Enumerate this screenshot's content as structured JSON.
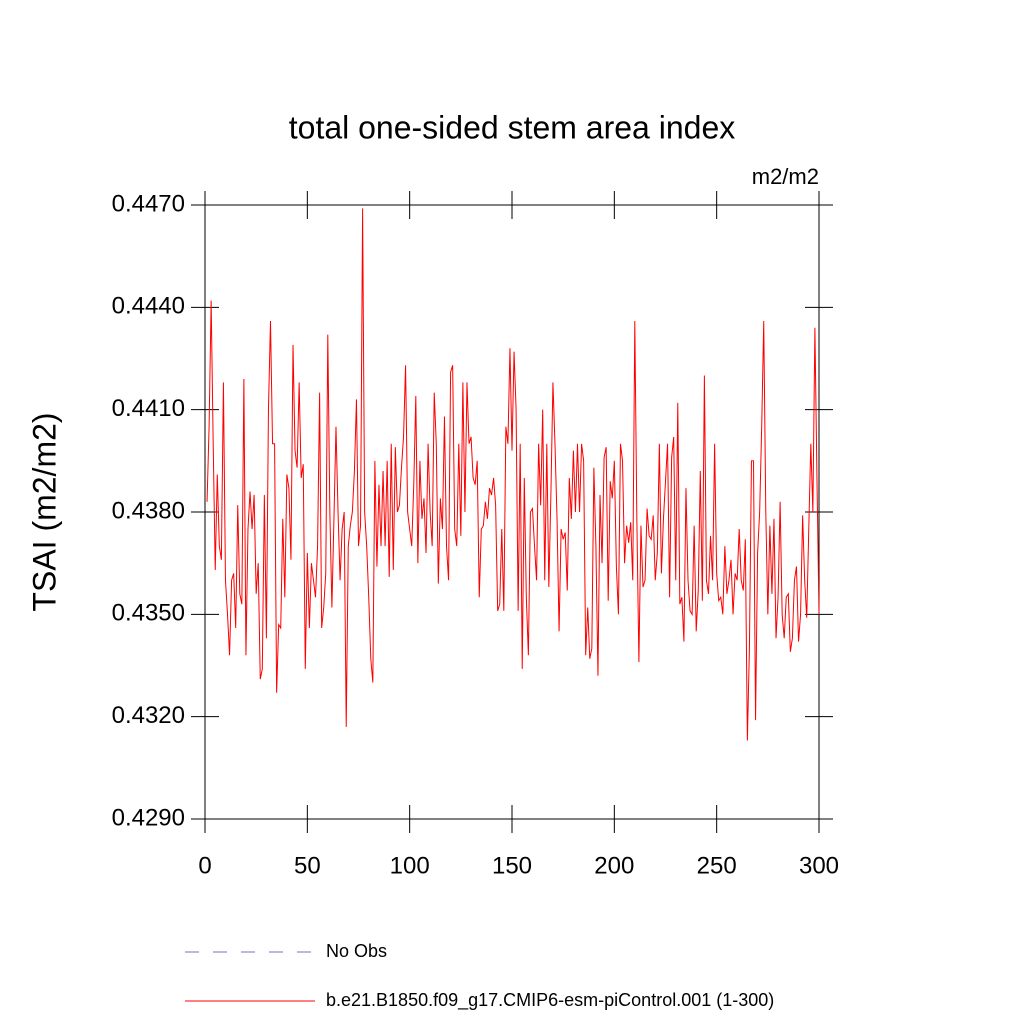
{
  "chart_data": {
    "type": "line",
    "title": "total one-sided stem area index",
    "units": "m2/m2",
    "ylabel": "TSAI  (m2/m2)",
    "xlim": [
      0,
      300
    ],
    "xticks": [
      0,
      50,
      100,
      150,
      200,
      250,
      300
    ],
    "ylim": [
      0.429,
      0.447
    ],
    "yticks": [
      {
        "value": 0.429,
        "label": "0.4290"
      },
      {
        "value": 0.432,
        "label": "0.4320"
      },
      {
        "value": 0.435,
        "label": "0.4350"
      },
      {
        "value": 0.438,
        "label": "0.4380"
      },
      {
        "value": 0.441,
        "label": "0.4410"
      },
      {
        "value": 0.444,
        "label": "0.4440"
      },
      {
        "value": 0.447,
        "label": "0.4470"
      }
    ],
    "x": [
      1,
      2,
      3,
      4,
      5,
      6,
      7,
      8,
      9,
      10,
      11,
      12,
      13,
      14,
      15,
      16,
      17,
      18,
      19,
      20,
      21,
      22,
      23,
      24,
      25,
      26,
      27,
      28,
      29,
      30,
      31,
      32,
      33,
      34,
      35,
      36,
      37,
      38,
      39,
      40,
      41,
      42,
      43,
      44,
      45,
      46,
      47,
      48,
      49,
      50,
      51,
      52,
      53,
      54,
      55,
      56,
      57,
      58,
      59,
      60,
      61,
      62,
      63,
      64,
      65,
      66,
      67,
      68,
      69,
      70,
      71,
      72,
      73,
      74,
      75,
      76,
      77,
      78,
      79,
      80,
      81,
      82,
      83,
      84,
      85,
      86,
      87,
      88,
      89,
      90,
      91,
      92,
      93,
      94,
      95,
      96,
      97,
      98,
      99,
      100,
      101,
      102,
      103,
      104,
      105,
      106,
      107,
      108,
      109,
      110,
      111,
      112,
      113,
      114,
      115,
      116,
      117,
      118,
      119,
      120,
      121,
      122,
      123,
      124,
      125,
      126,
      127,
      128,
      129,
      130,
      131,
      132,
      133,
      134,
      135,
      136,
      137,
      138,
      139,
      140,
      141,
      142,
      143,
      144,
      145,
      146,
      147,
      148,
      149,
      150,
      151,
      152,
      153,
      154,
      155,
      156,
      157,
      158,
      159,
      160,
      161,
      162,
      163,
      164,
      165,
      166,
      167,
      168,
      169,
      170,
      171,
      172,
      173,
      174,
      175,
      176,
      177,
      178,
      179,
      180,
      181,
      182,
      183,
      184,
      185,
      186,
      187,
      188,
      189,
      190,
      191,
      192,
      193,
      194,
      195,
      196,
      197,
      198,
      199,
      200,
      201,
      202,
      203,
      204,
      205,
      206,
      207,
      208,
      209,
      210,
      211,
      212,
      213,
      214,
      215,
      216,
      217,
      218,
      219,
      220,
      221,
      222,
      223,
      224,
      225,
      226,
      227,
      228,
      229,
      230,
      231,
      232,
      233,
      234,
      235,
      236,
      237,
      238,
      239,
      240,
      241,
      242,
      243,
      244,
      245,
      246,
      247,
      248,
      249,
      250,
      251,
      252,
      253,
      254,
      255,
      256,
      257,
      258,
      259,
      260,
      261,
      262,
      263,
      264,
      265,
      266,
      267,
      268,
      269,
      270,
      271,
      272,
      273,
      274,
      275,
      276,
      277,
      278,
      279,
      280,
      281,
      282,
      283,
      284,
      285,
      286,
      287,
      288,
      289,
      290,
      291,
      292,
      293,
      294,
      295,
      296,
      297,
      298,
      299,
      300
    ],
    "series": [
      {
        "name": "No Obs",
        "color": "#7070c0",
        "dash": true,
        "values": null
      },
      {
        "name": "b.e21.B1850.f09_g17.CMIP6-esm-piControl.001 (1-300)",
        "color": "#ff0000",
        "dash": false,
        "values": [
          0.4383,
          0.4405,
          0.4442,
          0.44,
          0.4363,
          0.4391,
          0.437,
          0.4366,
          0.4418,
          0.436,
          0.435,
          0.4338,
          0.436,
          0.4362,
          0.4346,
          0.4382,
          0.4356,
          0.4353,
          0.4419,
          0.4338,
          0.4375,
          0.4386,
          0.4375,
          0.4385,
          0.4356,
          0.4365,
          0.4331,
          0.4334,
          0.4385,
          0.4343,
          0.441,
          0.4436,
          0.44,
          0.44,
          0.4327,
          0.4347,
          0.4346,
          0.4378,
          0.4355,
          0.4391,
          0.4387,
          0.4366,
          0.4429,
          0.4398,
          0.4393,
          0.4418,
          0.439,
          0.4394,
          0.4334,
          0.4368,
          0.4346,
          0.4365,
          0.436,
          0.4355,
          0.437,
          0.4415,
          0.4346,
          0.4352,
          0.4362,
          0.4432,
          0.438,
          0.4352,
          0.4378,
          0.4405,
          0.438,
          0.436,
          0.4375,
          0.438,
          0.4317,
          0.437,
          0.4376,
          0.438,
          0.4392,
          0.4413,
          0.437,
          0.4376,
          0.4469,
          0.438,
          0.437,
          0.4355,
          0.4337,
          0.433,
          0.4395,
          0.4364,
          0.4388,
          0.437,
          0.4392,
          0.437,
          0.4395,
          0.4361,
          0.44,
          0.4363,
          0.4399,
          0.438,
          0.4382,
          0.4393,
          0.4402,
          0.4423,
          0.438,
          0.4375,
          0.437,
          0.4388,
          0.4414,
          0.4365,
          0.4395,
          0.4378,
          0.4384,
          0.4368,
          0.44,
          0.438,
          0.437,
          0.4415,
          0.44,
          0.4359,
          0.4384,
          0.4375,
          0.4408,
          0.437,
          0.436,
          0.4421,
          0.4423,
          0.4375,
          0.437,
          0.44,
          0.4373,
          0.4418,
          0.438,
          0.4418,
          0.44,
          0.4402,
          0.439,
          0.4388,
          0.4395,
          0.4355,
          0.4375,
          0.4376,
          0.4383,
          0.4378,
          0.4387,
          0.4385,
          0.439,
          0.4382,
          0.4351,
          0.4353,
          0.4375,
          0.4351,
          0.4405,
          0.44,
          0.4428,
          0.4398,
          0.4427,
          0.441,
          0.4351,
          0.44,
          0.4334,
          0.439,
          0.4355,
          0.4338,
          0.438,
          0.4381,
          0.437,
          0.436,
          0.44,
          0.4382,
          0.441,
          0.436,
          0.44,
          0.4358,
          0.4385,
          0.4418,
          0.44,
          0.4378,
          0.4345,
          0.4375,
          0.4372,
          0.4374,
          0.4357,
          0.439,
          0.4378,
          0.4398,
          0.438,
          0.44,
          0.438,
          0.44,
          0.4395,
          0.4338,
          0.4352,
          0.4337,
          0.434,
          0.4393,
          0.437,
          0.4332,
          0.4385,
          0.4365,
          0.4396,
          0.4399,
          0.4354,
          0.4389,
          0.4384,
          0.4395,
          0.4364,
          0.435,
          0.44,
          0.4395,
          0.4365,
          0.4376,
          0.4371,
          0.4377,
          0.436,
          0.4436,
          0.4378,
          0.4336,
          0.4376,
          0.4358,
          0.436,
          0.4381,
          0.4373,
          0.4372,
          0.4379,
          0.436,
          0.4368,
          0.44,
          0.4362,
          0.4378,
          0.4389,
          0.44,
          0.4355,
          0.4396,
          0.4402,
          0.436,
          0.4412,
          0.4353,
          0.4355,
          0.4342,
          0.4387,
          0.436,
          0.4351,
          0.435,
          0.4376,
          0.4345,
          0.4357,
          0.4392,
          0.4354,
          0.442,
          0.436,
          0.4356,
          0.4373,
          0.436,
          0.44,
          0.4362,
          0.4354,
          0.4355,
          0.435,
          0.437,
          0.4356,
          0.436,
          0.4366,
          0.435,
          0.4362,
          0.436,
          0.4375,
          0.436,
          0.4357,
          0.4372,
          0.4313,
          0.434,
          0.4395,
          0.4395,
          0.4319,
          0.4368,
          0.438,
          0.4405,
          0.4436,
          0.438,
          0.435,
          0.4376,
          0.4356,
          0.4378,
          0.4343,
          0.4355,
          0.4383,
          0.435,
          0.4343,
          0.4355,
          0.4356,
          0.4339,
          0.4343,
          0.436,
          0.4364,
          0.4342,
          0.435,
          0.4379,
          0.436,
          0.4349,
          0.4375,
          0.44,
          0.438,
          0.4434,
          0.439,
          0.435
        ]
      }
    ]
  }
}
